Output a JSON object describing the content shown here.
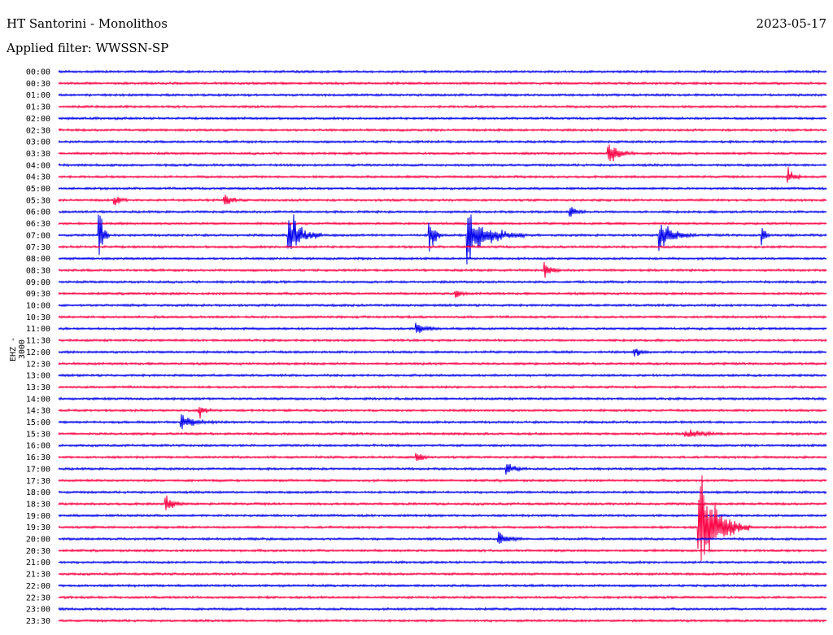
{
  "header": {
    "station": "HT Santorini - Monolithos",
    "date": "2023-05-17",
    "filter": "Applied filter: WWSSN-SP",
    "channel": "EHZ - 3000"
  },
  "colors": {
    "even_row": "#0000ee",
    "odd_row": "#ff0044"
  },
  "chart_data": {
    "type": "line",
    "title": "HT Santorini - Monolithos",
    "subtitle": "Applied filter: WWSSN-SP",
    "ylabel": "EHZ - 3000",
    "xlabel": "",
    "row_interval_minutes": 30,
    "rows": [
      "00:00",
      "00:30",
      "01:00",
      "01:30",
      "02:00",
      "02:30",
      "03:00",
      "03:30",
      "04:00",
      "04:30",
      "05:00",
      "05:30",
      "06:00",
      "06:30",
      "07:00",
      "07:30",
      "08:00",
      "08:30",
      "09:00",
      "09:30",
      "10:00",
      "10:30",
      "11:00",
      "11:30",
      "12:00",
      "12:30",
      "13:00",
      "13:30",
      "14:00",
      "14:30",
      "15:00",
      "15:30",
      "16:00",
      "16:30",
      "17:00",
      "17:30",
      "18:00",
      "18:30",
      "19:00",
      "19:30",
      "20:00",
      "20:30",
      "21:00",
      "21:30",
      "22:00",
      "22:30",
      "23:00",
      "23:30"
    ],
    "events": [
      {
        "row": "03:30",
        "minute": 21.5,
        "amplitude": 0.9,
        "duration_min": 1.0
      },
      {
        "row": "04:30",
        "minute": 28.5,
        "amplitude": 0.6,
        "duration_min": 0.6
      },
      {
        "row": "05:30",
        "minute": 2.2,
        "amplitude": 0.4,
        "duration_min": 0.5
      },
      {
        "row": "05:30",
        "minute": 6.5,
        "amplitude": 0.4,
        "duration_min": 0.8
      },
      {
        "row": "06:00",
        "minute": 20.0,
        "amplitude": 0.5,
        "duration_min": 0.6
      },
      {
        "row": "07:00",
        "minute": 1.6,
        "amplitude": 2.0,
        "duration_min": 0.4
      },
      {
        "row": "07:00",
        "minute": 9.0,
        "amplitude": 1.8,
        "duration_min": 1.3
      },
      {
        "row": "07:00",
        "minute": 14.5,
        "amplitude": 1.6,
        "duration_min": 0.5
      },
      {
        "row": "07:00",
        "minute": 16.0,
        "amplitude": 1.8,
        "duration_min": 2.2
      },
      {
        "row": "07:00",
        "minute": 23.5,
        "amplitude": 1.0,
        "duration_min": 1.4
      },
      {
        "row": "07:00",
        "minute": 27.5,
        "amplitude": 0.7,
        "duration_min": 0.3
      },
      {
        "row": "08:30",
        "minute": 19.0,
        "amplitude": 0.6,
        "duration_min": 0.6
      },
      {
        "row": "09:30",
        "minute": 15.5,
        "amplitude": 0.5,
        "duration_min": 0.5
      },
      {
        "row": "11:00",
        "minute": 14.0,
        "amplitude": 0.4,
        "duration_min": 1.0
      },
      {
        "row": "12:00",
        "minute": 22.5,
        "amplitude": 0.4,
        "duration_min": 0.6
      },
      {
        "row": "14:30",
        "minute": 5.5,
        "amplitude": 0.5,
        "duration_min": 0.6
      },
      {
        "row": "15:00",
        "minute": 4.8,
        "amplitude": 0.5,
        "duration_min": 1.4
      },
      {
        "row": "15:30",
        "minute": 24.5,
        "amplitude": 0.4,
        "duration_min": 1.5
      },
      {
        "row": "16:30",
        "minute": 14.0,
        "amplitude": 0.5,
        "duration_min": 0.5
      },
      {
        "row": "17:00",
        "minute": 17.5,
        "amplitude": 0.5,
        "duration_min": 0.8
      },
      {
        "row": "18:30",
        "minute": 4.2,
        "amplitude": 0.6,
        "duration_min": 0.7
      },
      {
        "row": "19:30",
        "minute": 25.0,
        "amplitude": 4.0,
        "duration_min": 2.0
      },
      {
        "row": "20:00",
        "minute": 17.2,
        "amplitude": 0.6,
        "duration_min": 0.9
      }
    ]
  }
}
